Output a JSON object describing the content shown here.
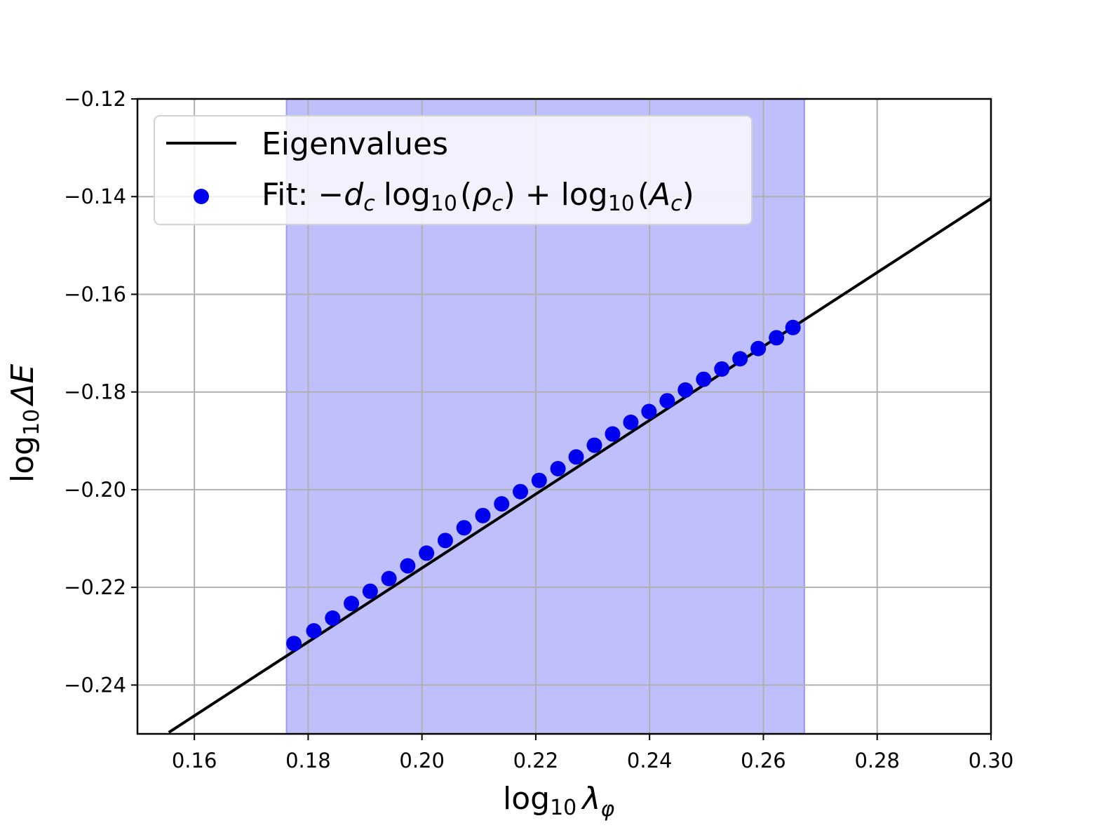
{
  "chart_data": {
    "type": "line",
    "xlabel": "log₁₀ λ_φ",
    "ylabel": "log₁₀ ΔE",
    "xlim": [
      0.15,
      0.3
    ],
    "ylim": [
      -0.25,
      -0.12
    ],
    "grid": true,
    "legend_position": "top-left",
    "x_ticks": [
      "0.16",
      "0.18",
      "0.20",
      "0.22",
      "0.24",
      "0.26",
      "0.28",
      "0.30"
    ],
    "x_tick_values": [
      0.16,
      0.18,
      0.2,
      0.22,
      0.24,
      0.26,
      0.28,
      0.3
    ],
    "y_ticks": [
      "−0.12",
      "−0.14",
      "−0.16",
      "−0.18",
      "−0.20",
      "−0.22",
      "−0.24"
    ],
    "y_tick_values": [
      -0.12,
      -0.14,
      -0.16,
      -0.18,
      -0.2,
      -0.22,
      -0.24
    ],
    "shaded_region": {
      "x_start": 0.1762,
      "x_end": 0.2672,
      "color": "#bfbffb"
    },
    "series": [
      {
        "name": "Eigenvalues",
        "kind": "line",
        "color": "#000000",
        "x": [
          0.1555,
          0.3
        ],
        "y": [
          -0.2497,
          -0.1404
        ]
      },
      {
        "name": "Fit: −d_c log₁₀(ρ_c) + log₁₀(A_c)",
        "kind": "scatter",
        "color": "#0000ee",
        "x": [
          0.1775,
          0.181,
          0.1843,
          0.1876,
          0.1909,
          0.1942,
          0.1975,
          0.2008,
          0.2041,
          0.2074,
          0.2107,
          0.214,
          0.2173,
          0.2206,
          0.2239,
          0.2271,
          0.2303,
          0.2335,
          0.2367,
          0.2399,
          0.2431,
          0.2463,
          0.2495,
          0.2527,
          0.2559,
          0.2591,
          0.2623,
          0.2652
        ],
        "y": [
          -0.2315,
          -0.2289,
          -0.2263,
          -0.2233,
          -0.2208,
          -0.2182,
          -0.2156,
          -0.213,
          -0.2104,
          -0.2078,
          -0.2053,
          -0.2029,
          -0.2004,
          -0.1981,
          -0.1957,
          -0.1933,
          -0.1909,
          -0.1886,
          -0.1862,
          -0.184,
          -0.1818,
          -0.1796,
          -0.1774,
          -0.1753,
          -0.1732,
          -0.1711,
          -0.1689,
          -0.1668
        ]
      }
    ]
  },
  "legend": {
    "line_label": "Eigenvalues",
    "fit_prefix": "Fit: ",
    "fit_minus": "−",
    "fit_d": "d",
    "fit_c": "c",
    "fit_log": "log",
    "fit_10": "10",
    "fit_open": "(",
    "fit_rho": "ρ",
    "fit_close": ")",
    "fit_plus": " + ",
    "fit_A": "A"
  },
  "axis_labels": {
    "x_log": "log",
    "x_sub": "10",
    "x_lambda": "λ",
    "x_phi": "φ",
    "y_log": "log",
    "y_sub": "10",
    "y_delta": "ΔE"
  }
}
